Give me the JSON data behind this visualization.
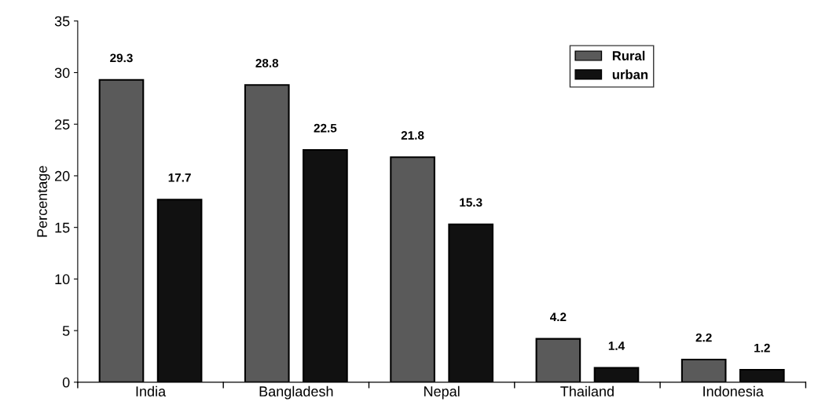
{
  "chart_data": {
    "type": "bar",
    "ylabel": "Percentage",
    "categories": [
      "India",
      "Bangladesh",
      "Nepal",
      "Thailand",
      "Indonesia"
    ],
    "series": [
      {
        "name": "Rural",
        "color": "#5a5a5a",
        "values": [
          29.3,
          28.8,
          21.8,
          4.2,
          2.2
        ]
      },
      {
        "name": "urban",
        "color": "#111111",
        "values": [
          17.7,
          22.5,
          15.3,
          1.4,
          1.2
        ]
      }
    ],
    "ylim": [
      0,
      35
    ],
    "yticks": [
      0,
      5,
      10,
      15,
      20,
      25,
      30,
      35
    ],
    "grid": false,
    "legend": "top right",
    "data_labels": true
  }
}
